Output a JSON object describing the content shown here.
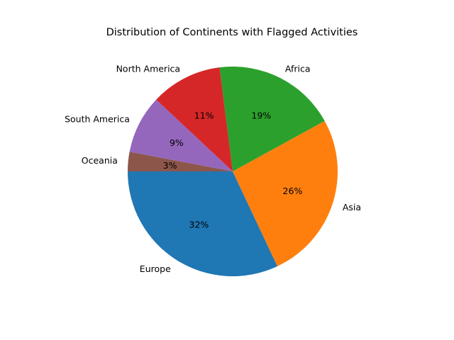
{
  "chart_data": {
    "type": "pie",
    "title": "Distribution of Continents with Flagged Activities",
    "categories": [
      "Europe",
      "Asia",
      "Africa",
      "North America",
      "South America",
      "Oceania"
    ],
    "values": [
      32,
      26,
      19,
      11,
      9,
      3
    ],
    "percent_labels": [
      "32%",
      "26%",
      "19%",
      "11%",
      "9%",
      "3%"
    ],
    "colors": [
      "#1f77b4",
      "#ff7f0e",
      "#2ca02c",
      "#d62728",
      "#9467bd",
      "#8c564b"
    ],
    "start_angle_deg": 180,
    "direction": "counterclockwise",
    "legend": "none"
  }
}
